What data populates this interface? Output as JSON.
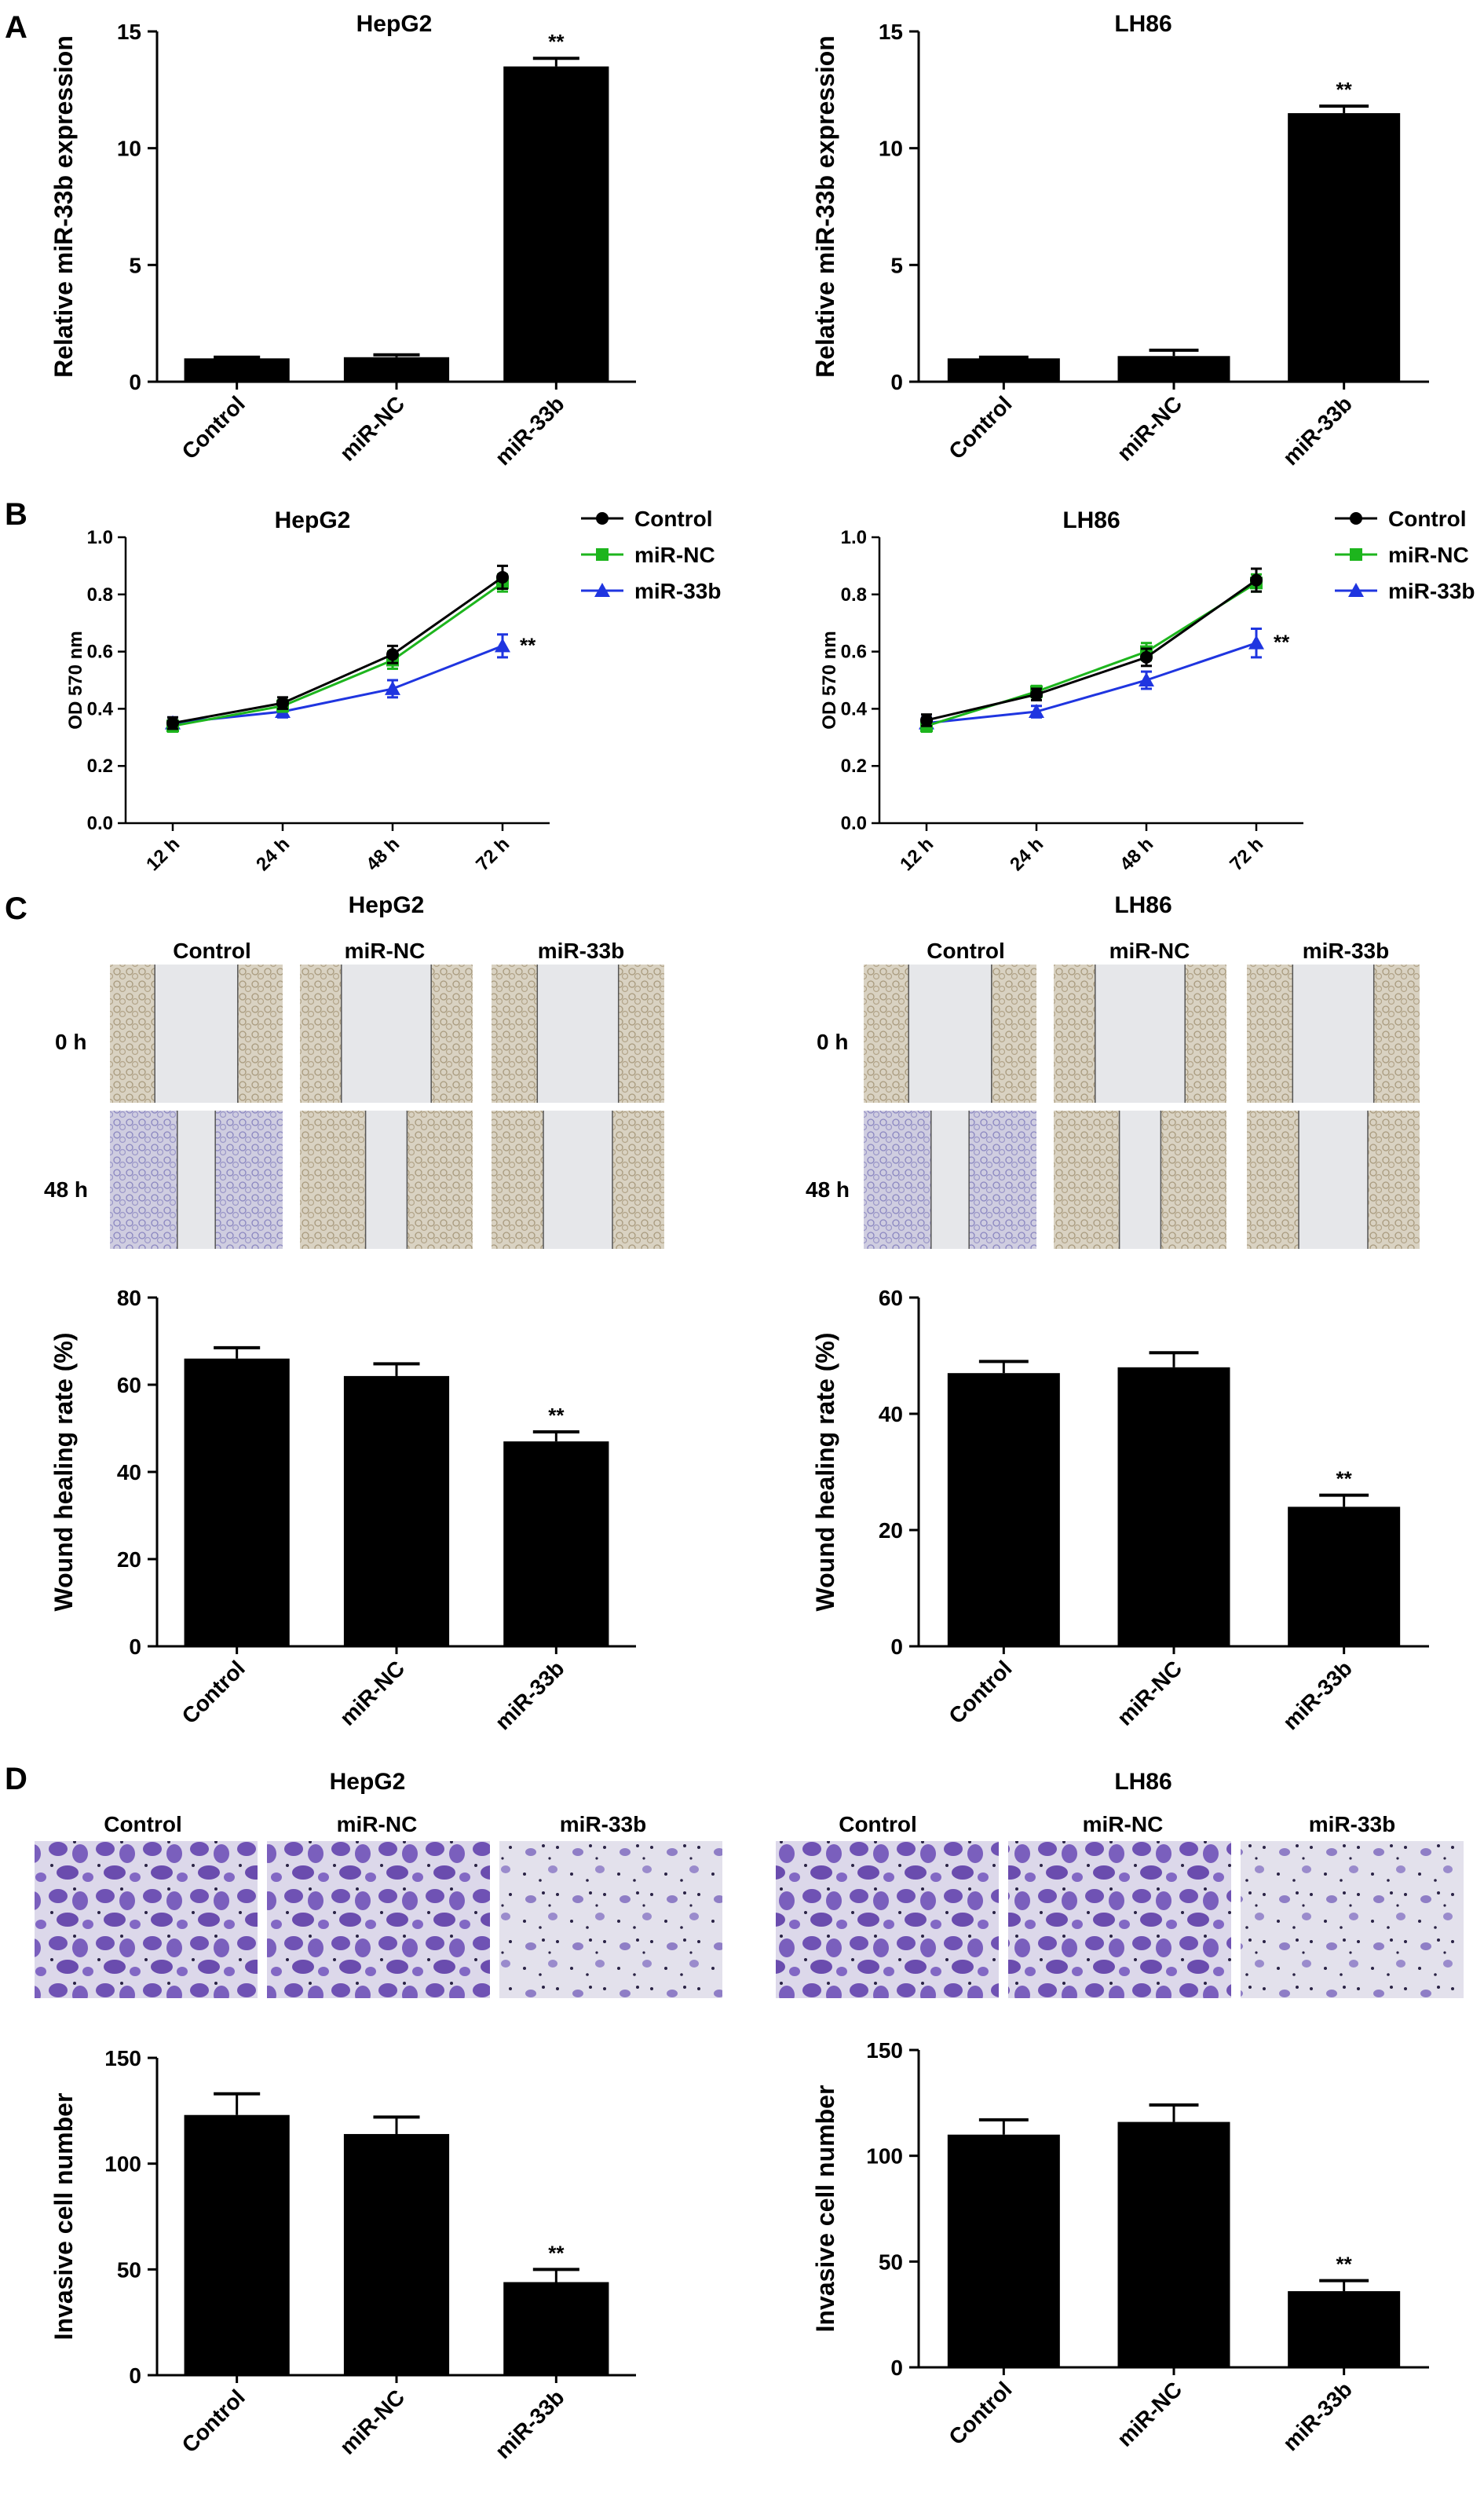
{
  "colors": {
    "bar": "#000000",
    "control": "#000000",
    "mirnc": "#1db51d",
    "mir33b": "#1f35e0",
    "wound_bg": "#e6e7ea",
    "cells_brown": "#b8a88a",
    "cells_blue": "#8a86c8",
    "stain_purple": "#6b4fb0",
    "stain_bg": "#e4e2ee"
  },
  "panels": [
    "A",
    "B",
    "C",
    "D"
  ],
  "cell_lines": [
    "HepG2",
    "LH86"
  ],
  "group_labels": [
    "Control",
    "miR-NC",
    "miR-33b"
  ],
  "time_labels": [
    "0 h",
    "48 h"
  ],
  "significance": "**",
  "chart_data": [
    {
      "id": "A-HepG2",
      "type": "bar",
      "title": "HepG2",
      "ylabel": "Relative miR-33b expression",
      "categories": [
        "Control",
        "miR-NC",
        "miR-33b"
      ],
      "values": [
        1.0,
        1.05,
        13.5
      ],
      "errors": [
        0.05,
        0.1,
        0.35
      ],
      "ylim": [
        0,
        15
      ],
      "yticks": [
        0,
        5,
        10,
        15
      ],
      "significant": [
        false,
        false,
        true
      ]
    },
    {
      "id": "A-LH86",
      "type": "bar",
      "title": "LH86",
      "ylabel": "Relative miR-33b expression",
      "categories": [
        "Control",
        "miR-NC",
        "miR-33b"
      ],
      "values": [
        1.0,
        1.1,
        11.5
      ],
      "errors": [
        0.05,
        0.25,
        0.3
      ],
      "ylim": [
        0,
        15
      ],
      "yticks": [
        0,
        5,
        10,
        15
      ],
      "significant": [
        false,
        false,
        true
      ]
    },
    {
      "id": "B-HepG2",
      "type": "line",
      "title": "HepG2",
      "ylabel": "OD 570 nm",
      "x": [
        "12 h",
        "24 h",
        "48 h",
        "72 h"
      ],
      "ylim": [
        0,
        1.0
      ],
      "yticks": [
        0.0,
        0.2,
        0.4,
        0.6,
        0.8,
        1.0
      ],
      "legend": "top-right",
      "series": [
        {
          "name": "Control",
          "marker": "circle",
          "values": [
            0.35,
            0.42,
            0.59,
            0.86
          ],
          "errors": [
            0.02,
            0.02,
            0.03,
            0.04
          ]
        },
        {
          "name": "miR-NC",
          "marker": "square",
          "values": [
            0.34,
            0.41,
            0.57,
            0.84
          ],
          "errors": [
            0.02,
            0.02,
            0.03,
            0.03
          ]
        },
        {
          "name": "miR-33b",
          "marker": "triangle",
          "values": [
            0.35,
            0.39,
            0.47,
            0.62
          ],
          "errors": [
            0.02,
            0.02,
            0.03,
            0.04
          ]
        }
      ],
      "significant_series": "miR-33b"
    },
    {
      "id": "B-LH86",
      "type": "line",
      "title": "LH86",
      "ylabel": "OD 570 nm",
      "x": [
        "12 h",
        "24 h",
        "48 h",
        "72 h"
      ],
      "ylim": [
        0,
        1.0
      ],
      "yticks": [
        0.0,
        0.2,
        0.4,
        0.6,
        0.8,
        1.0
      ],
      "legend": "top-right",
      "series": [
        {
          "name": "Control",
          "marker": "circle",
          "values": [
            0.36,
            0.45,
            0.58,
            0.85
          ],
          "errors": [
            0.02,
            0.02,
            0.03,
            0.04
          ]
        },
        {
          "name": "miR-NC",
          "marker": "square",
          "values": [
            0.34,
            0.46,
            0.6,
            0.84
          ],
          "errors": [
            0.02,
            0.02,
            0.03,
            0.03
          ]
        },
        {
          "name": "miR-33b",
          "marker": "triangle",
          "values": [
            0.35,
            0.39,
            0.5,
            0.63
          ],
          "errors": [
            0.02,
            0.02,
            0.03,
            0.05
          ]
        }
      ],
      "significant_series": "miR-33b"
    },
    {
      "id": "C-HepG2",
      "type": "bar",
      "ylabel": "Wound healing rate (%)",
      "categories": [
        "Control",
        "miR-NC",
        "miR-33b"
      ],
      "values": [
        66,
        62,
        47
      ],
      "errors": [
        2.5,
        2.8,
        2.2
      ],
      "ylim": [
        0,
        80
      ],
      "yticks": [
        0,
        20,
        40,
        60,
        80
      ],
      "significant": [
        false,
        false,
        true
      ]
    },
    {
      "id": "C-LH86",
      "type": "bar",
      "ylabel": "Wound healing rate (%)",
      "categories": [
        "Control",
        "miR-NC",
        "miR-33b"
      ],
      "values": [
        47,
        48,
        24
      ],
      "errors": [
        2.0,
        2.5,
        2.0
      ],
      "ylim": [
        0,
        60
      ],
      "yticks": [
        0,
        20,
        40,
        60
      ],
      "significant": [
        false,
        false,
        true
      ]
    },
    {
      "id": "D-HepG2",
      "type": "bar",
      "ylabel": "Invasive cell number",
      "categories": [
        "Control",
        "miR-NC",
        "miR-33b"
      ],
      "values": [
        123,
        114,
        44
      ],
      "errors": [
        10,
        8,
        6
      ],
      "ylim": [
        0,
        150
      ],
      "yticks": [
        0,
        50,
        100,
        150
      ],
      "significant": [
        false,
        false,
        true
      ]
    },
    {
      "id": "D-LH86",
      "type": "bar",
      "ylabel": "Invasive cell number",
      "categories": [
        "Control",
        "miR-NC",
        "miR-33b"
      ],
      "values": [
        110,
        116,
        36
      ],
      "errors": [
        7,
        8,
        5
      ],
      "ylim": [
        0,
        150
      ],
      "yticks": [
        0,
        50,
        100,
        150
      ],
      "significant": [
        false,
        false,
        true
      ]
    }
  ]
}
